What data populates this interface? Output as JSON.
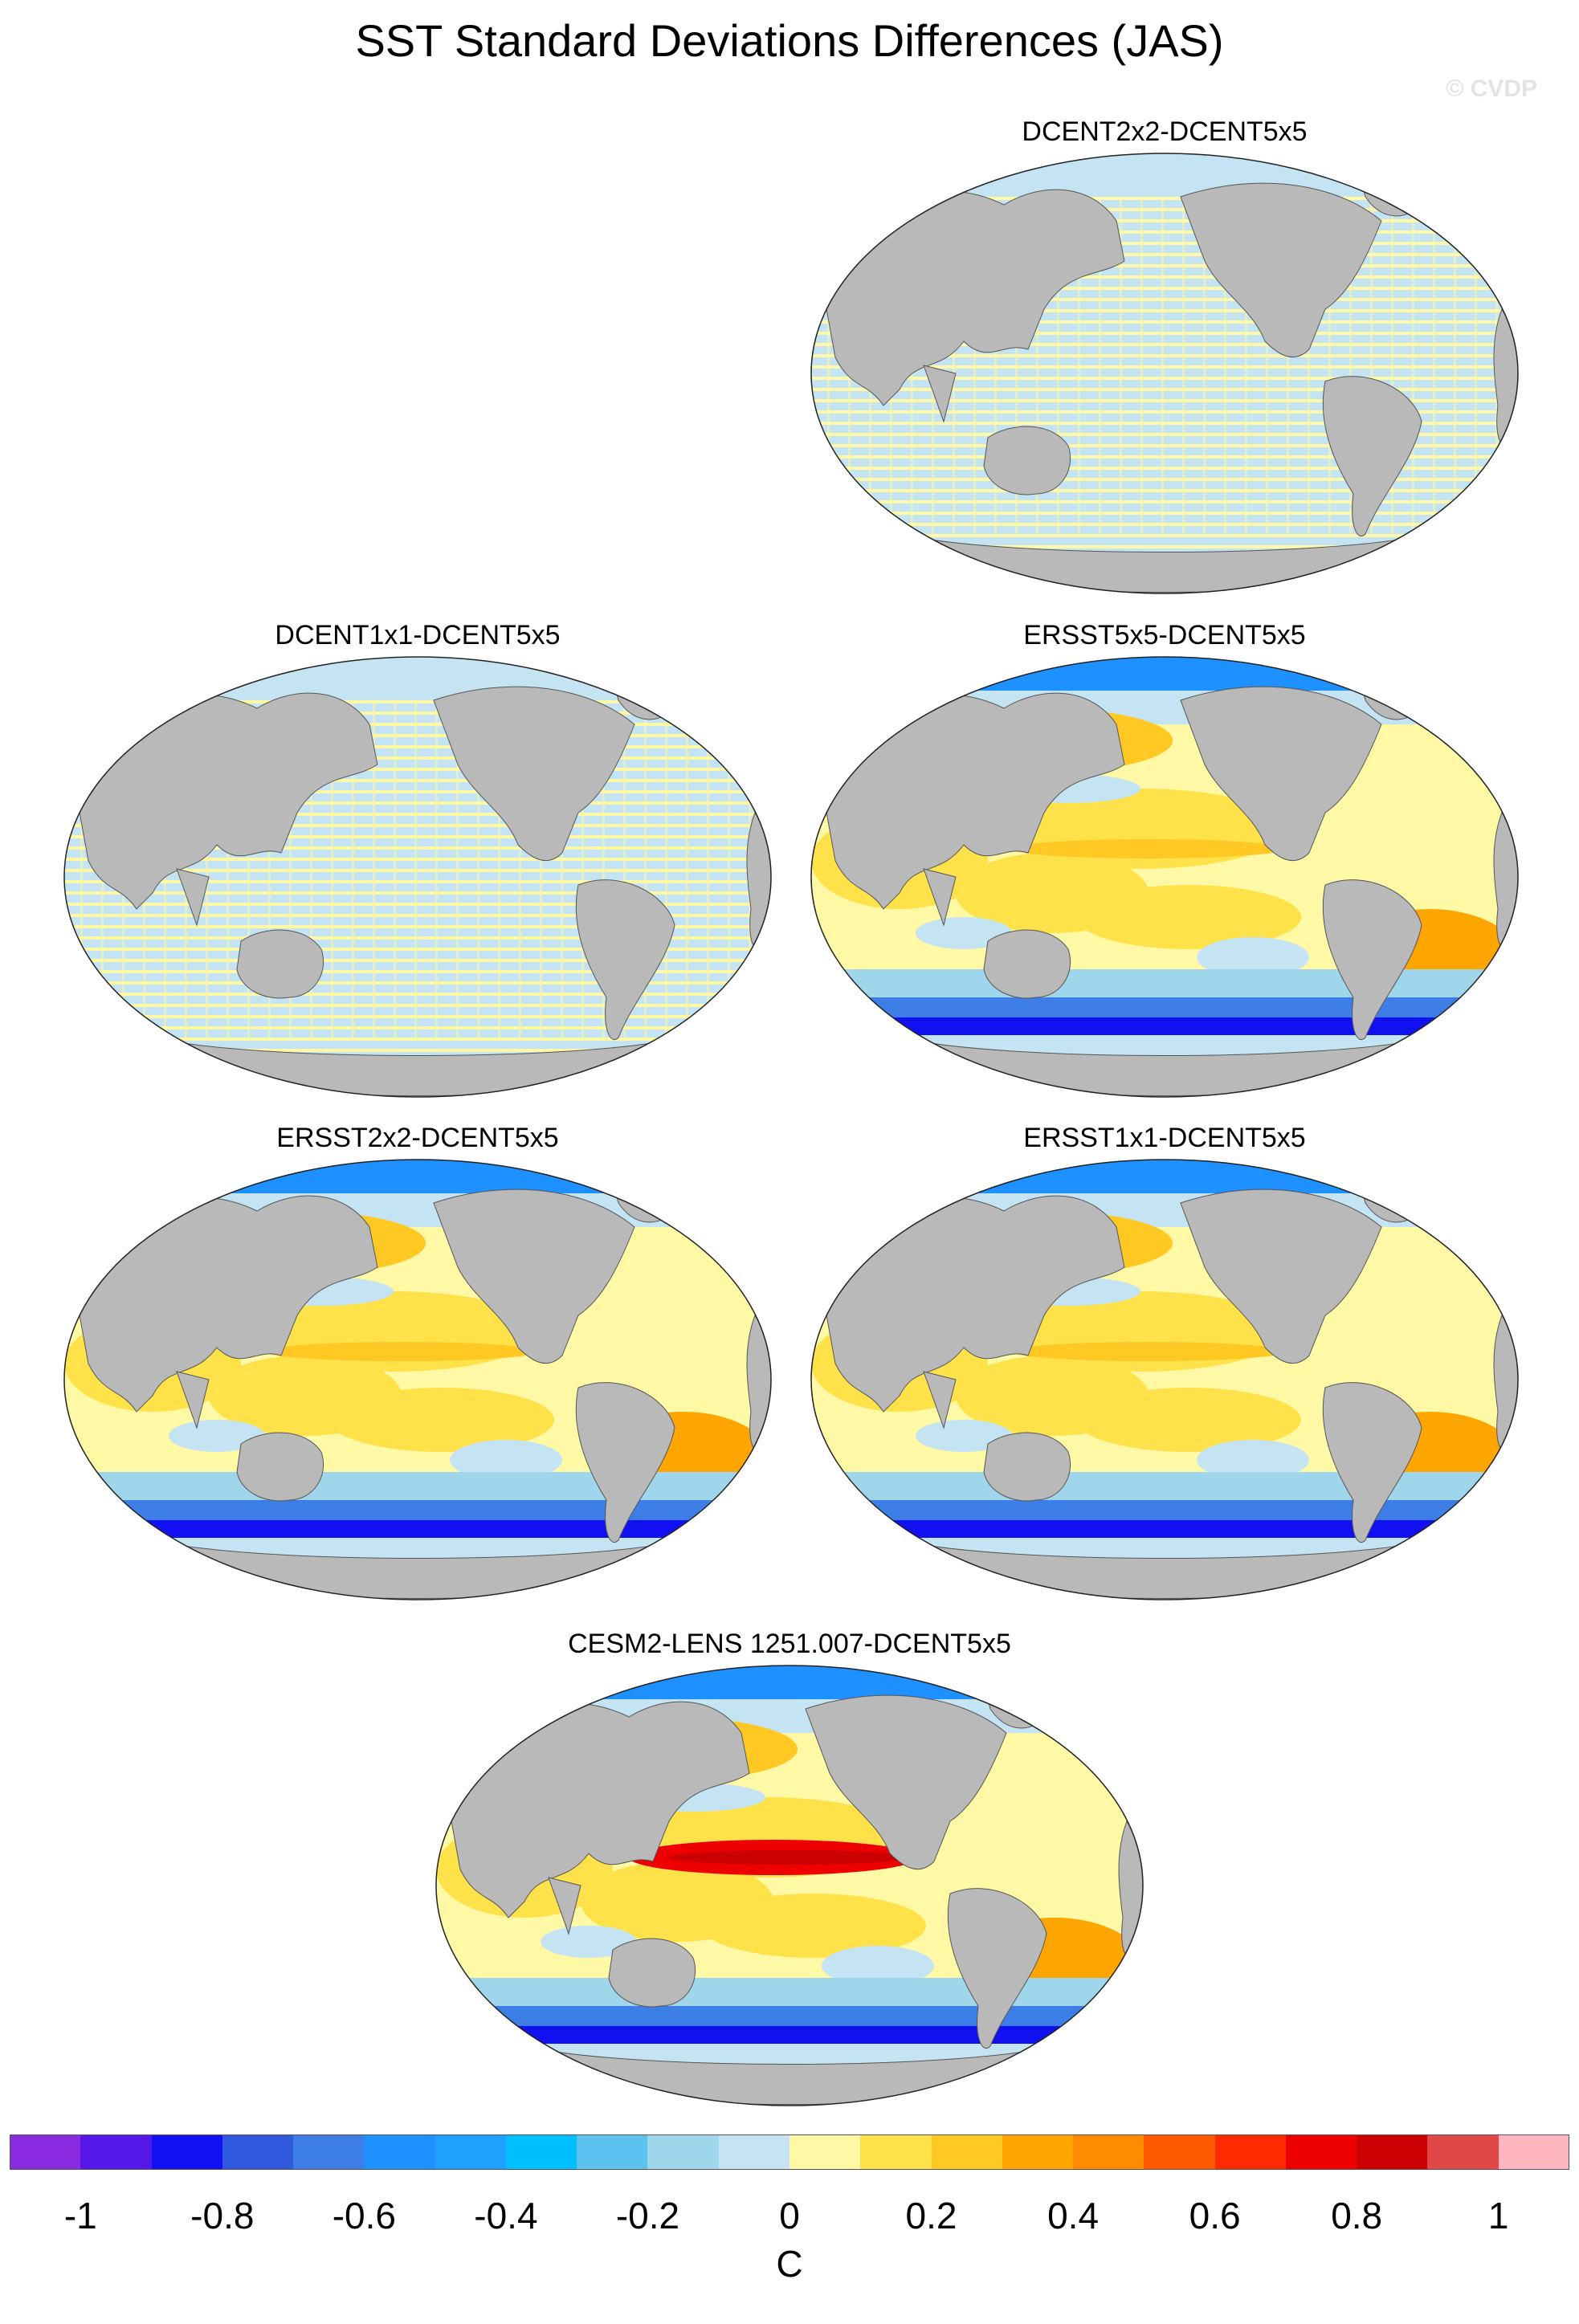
{
  "figure": {
    "title": "SST Standard Deviations Differences (JAS)",
    "watermark": "© CVDP"
  },
  "panels": [
    {
      "id": "p1",
      "title": "DCENT2x2-DCENT5x5",
      "style": "stripes"
    },
    {
      "id": "p2",
      "title": "DCENT1x1-DCENT5x5",
      "style": "stripes"
    },
    {
      "id": "p3",
      "title": "ERSST5x5-DCENT5x5",
      "style": "ersst"
    },
    {
      "id": "p4",
      "title": "ERSST2x2-DCENT5x5",
      "style": "ersst"
    },
    {
      "id": "p5",
      "title": "ERSST1x1-DCENT5x5",
      "style": "ersst"
    },
    {
      "id": "p6",
      "title": "CESM2-LENS 1251.007-DCENT5x5",
      "style": "cesm"
    }
  ],
  "colorbar": {
    "unit": "C",
    "tick_labels": [
      "-1",
      "-0.8",
      "-0.6",
      "-0.4",
      "-0.2",
      "0",
      "0.2",
      "0.4",
      "0.6",
      "0.8",
      "1"
    ],
    "colors": [
      "#8a2be2",
      "#5518e8",
      "#1010f0",
      "#2f5ae0",
      "#3d7ee6",
      "#1e90ff",
      "#1ea0ff",
      "#00bfff",
      "#5cc2f0",
      "#a0d6ec",
      "#c4e4f4",
      "#fff8a5",
      "#ffe14a",
      "#ffc823",
      "#ffa500",
      "#ff8c00",
      "#ff5a00",
      "#ff2a00",
      "#ee0000",
      "#cc0000",
      "#e04848",
      "#ffb6c1"
    ]
  },
  "colors": {
    "land": "#b9b9b9",
    "ocean_neutral": "#c4e4f4"
  }
}
